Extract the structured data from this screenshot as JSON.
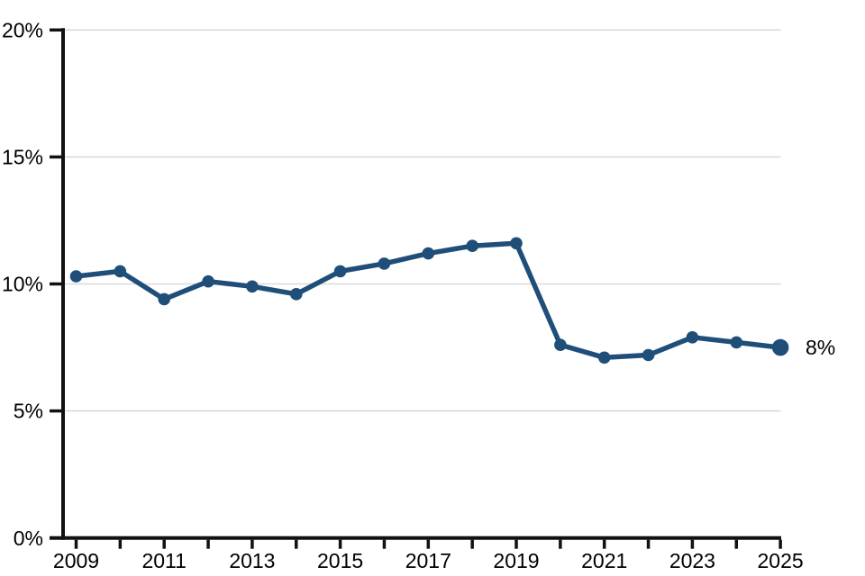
{
  "page": {
    "background": "#ffffff"
  },
  "chart_data": {
    "type": "line",
    "title": "",
    "xlabel": "",
    "ylabel": "",
    "x": [
      2009,
      2010,
      2011,
      2012,
      2013,
      2014,
      2015,
      2016,
      2017,
      2018,
      2019,
      2020,
      2021,
      2022,
      2023,
      2024,
      2025
    ],
    "series": [
      {
        "name": "percent",
        "values": [
          10.3,
          10.5,
          9.4,
          10.1,
          9.9,
          9.6,
          10.5,
          10.8,
          11.2,
          11.5,
          11.6,
          7.6,
          7.1,
          7.2,
          7.9,
          7.7,
          7.5
        ]
      }
    ],
    "ylim": [
      0,
      20
    ],
    "yticks": [
      {
        "value": 0,
        "label": "0%"
      },
      {
        "value": 5,
        "label": "5%"
      },
      {
        "value": 10,
        "label": "10%"
      },
      {
        "value": 15,
        "label": "15%"
      },
      {
        "value": 20,
        "label": "20%"
      }
    ],
    "xtick_minor_years": [
      2009,
      2010,
      2011,
      2012,
      2013,
      2014,
      2015,
      2016,
      2017,
      2018,
      2019,
      2020,
      2021,
      2022,
      2023,
      2024,
      2025
    ],
    "xtick_labeled": [
      {
        "year": 2009,
        "label": "2009"
      },
      {
        "year": 2011,
        "label": "2011"
      },
      {
        "year": 2013,
        "label": "2013"
      },
      {
        "year": 2015,
        "label": "2015"
      },
      {
        "year": 2017,
        "label": "2017"
      },
      {
        "year": 2019,
        "label": "2019"
      },
      {
        "year": 2021,
        "label": "2021"
      },
      {
        "year": 2023,
        "label": "2023"
      },
      {
        "year": 2025,
        "label": "2025"
      }
    ],
    "end_label": "8%",
    "grid": "horizontal",
    "legend": "none",
    "colors": {
      "line": "#1f4e79",
      "marker": "#1f4e79",
      "grid": "#d9d9d9",
      "axis": "#111111",
      "text": "#000000"
    }
  }
}
